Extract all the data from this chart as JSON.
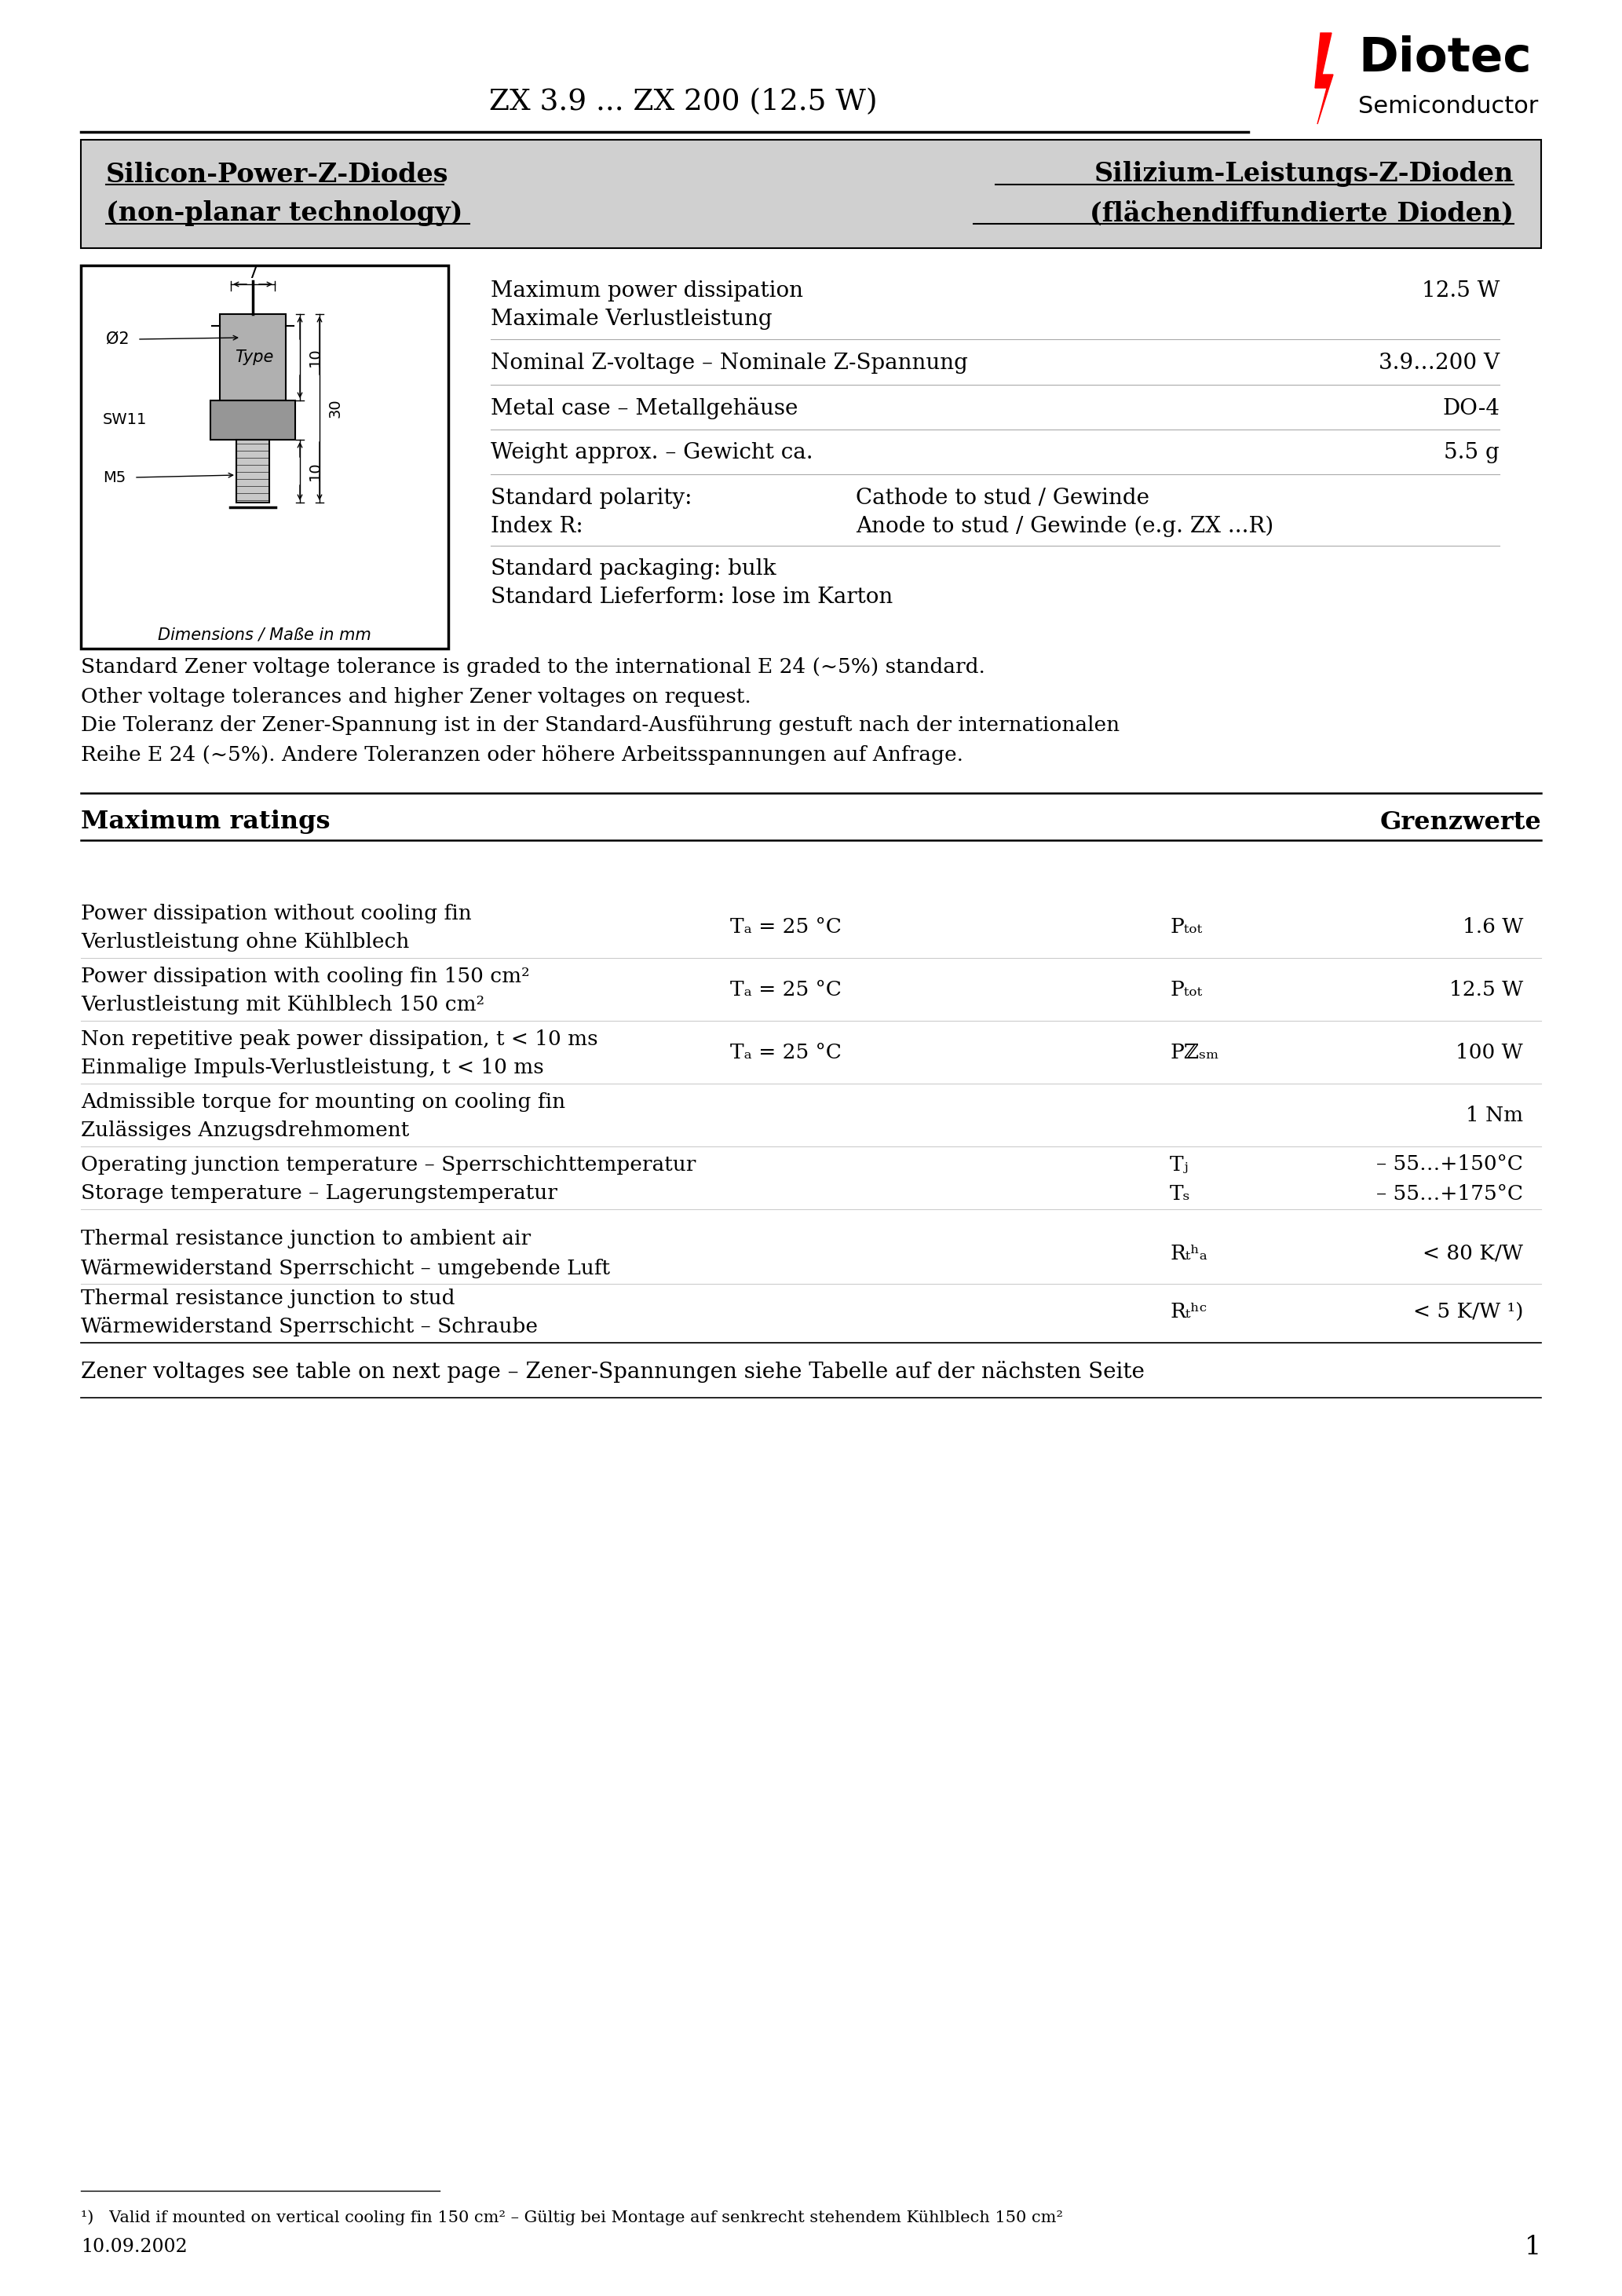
{
  "title_center": "ZX 3.9 ... ZX 200 (12.5 W)",
  "logo_text": "Diotec",
  "logo_sub": "Semiconductor",
  "header_left_line1": "Silicon-Power-Z-Diodes",
  "header_left_line2": "(non-planar technology)",
  "header_right_line1": "Silizium-Leistungs-Z-Dioden",
  "header_right_line2": "(flächendiffundierte Dioden)",
  "tolerance_text": "Standard Zener voltage tolerance is graded to the international E 24 (~5%) standard.\nOther voltage tolerances and higher Zener voltages on request.\nDie Toleranz der Zener-Spannung ist in der Standard-Ausführung gestuft nach der internationalen\nReihe E 24 (~5%). Andere Toleranzen oder höhere Arbeitsspannungen auf Anfrage.",
  "max_ratings_left": "Maximum ratings",
  "max_ratings_right": "Grenzwerte",
  "zener_note": "Zener voltages see table on next page – Zener-Spannungen siehe Tabelle auf der nächsten Seite",
  "footnote": "¹)   Valid if mounted on vertical cooling fin 150 cm² – Gültig bei Montage auf senkrecht stehendem Kühlblech 150 cm²",
  "date": "10.09.2002",
  "page_num": "1",
  "bg_color": "#ffffff",
  "header_bg": "#d0d0d0"
}
